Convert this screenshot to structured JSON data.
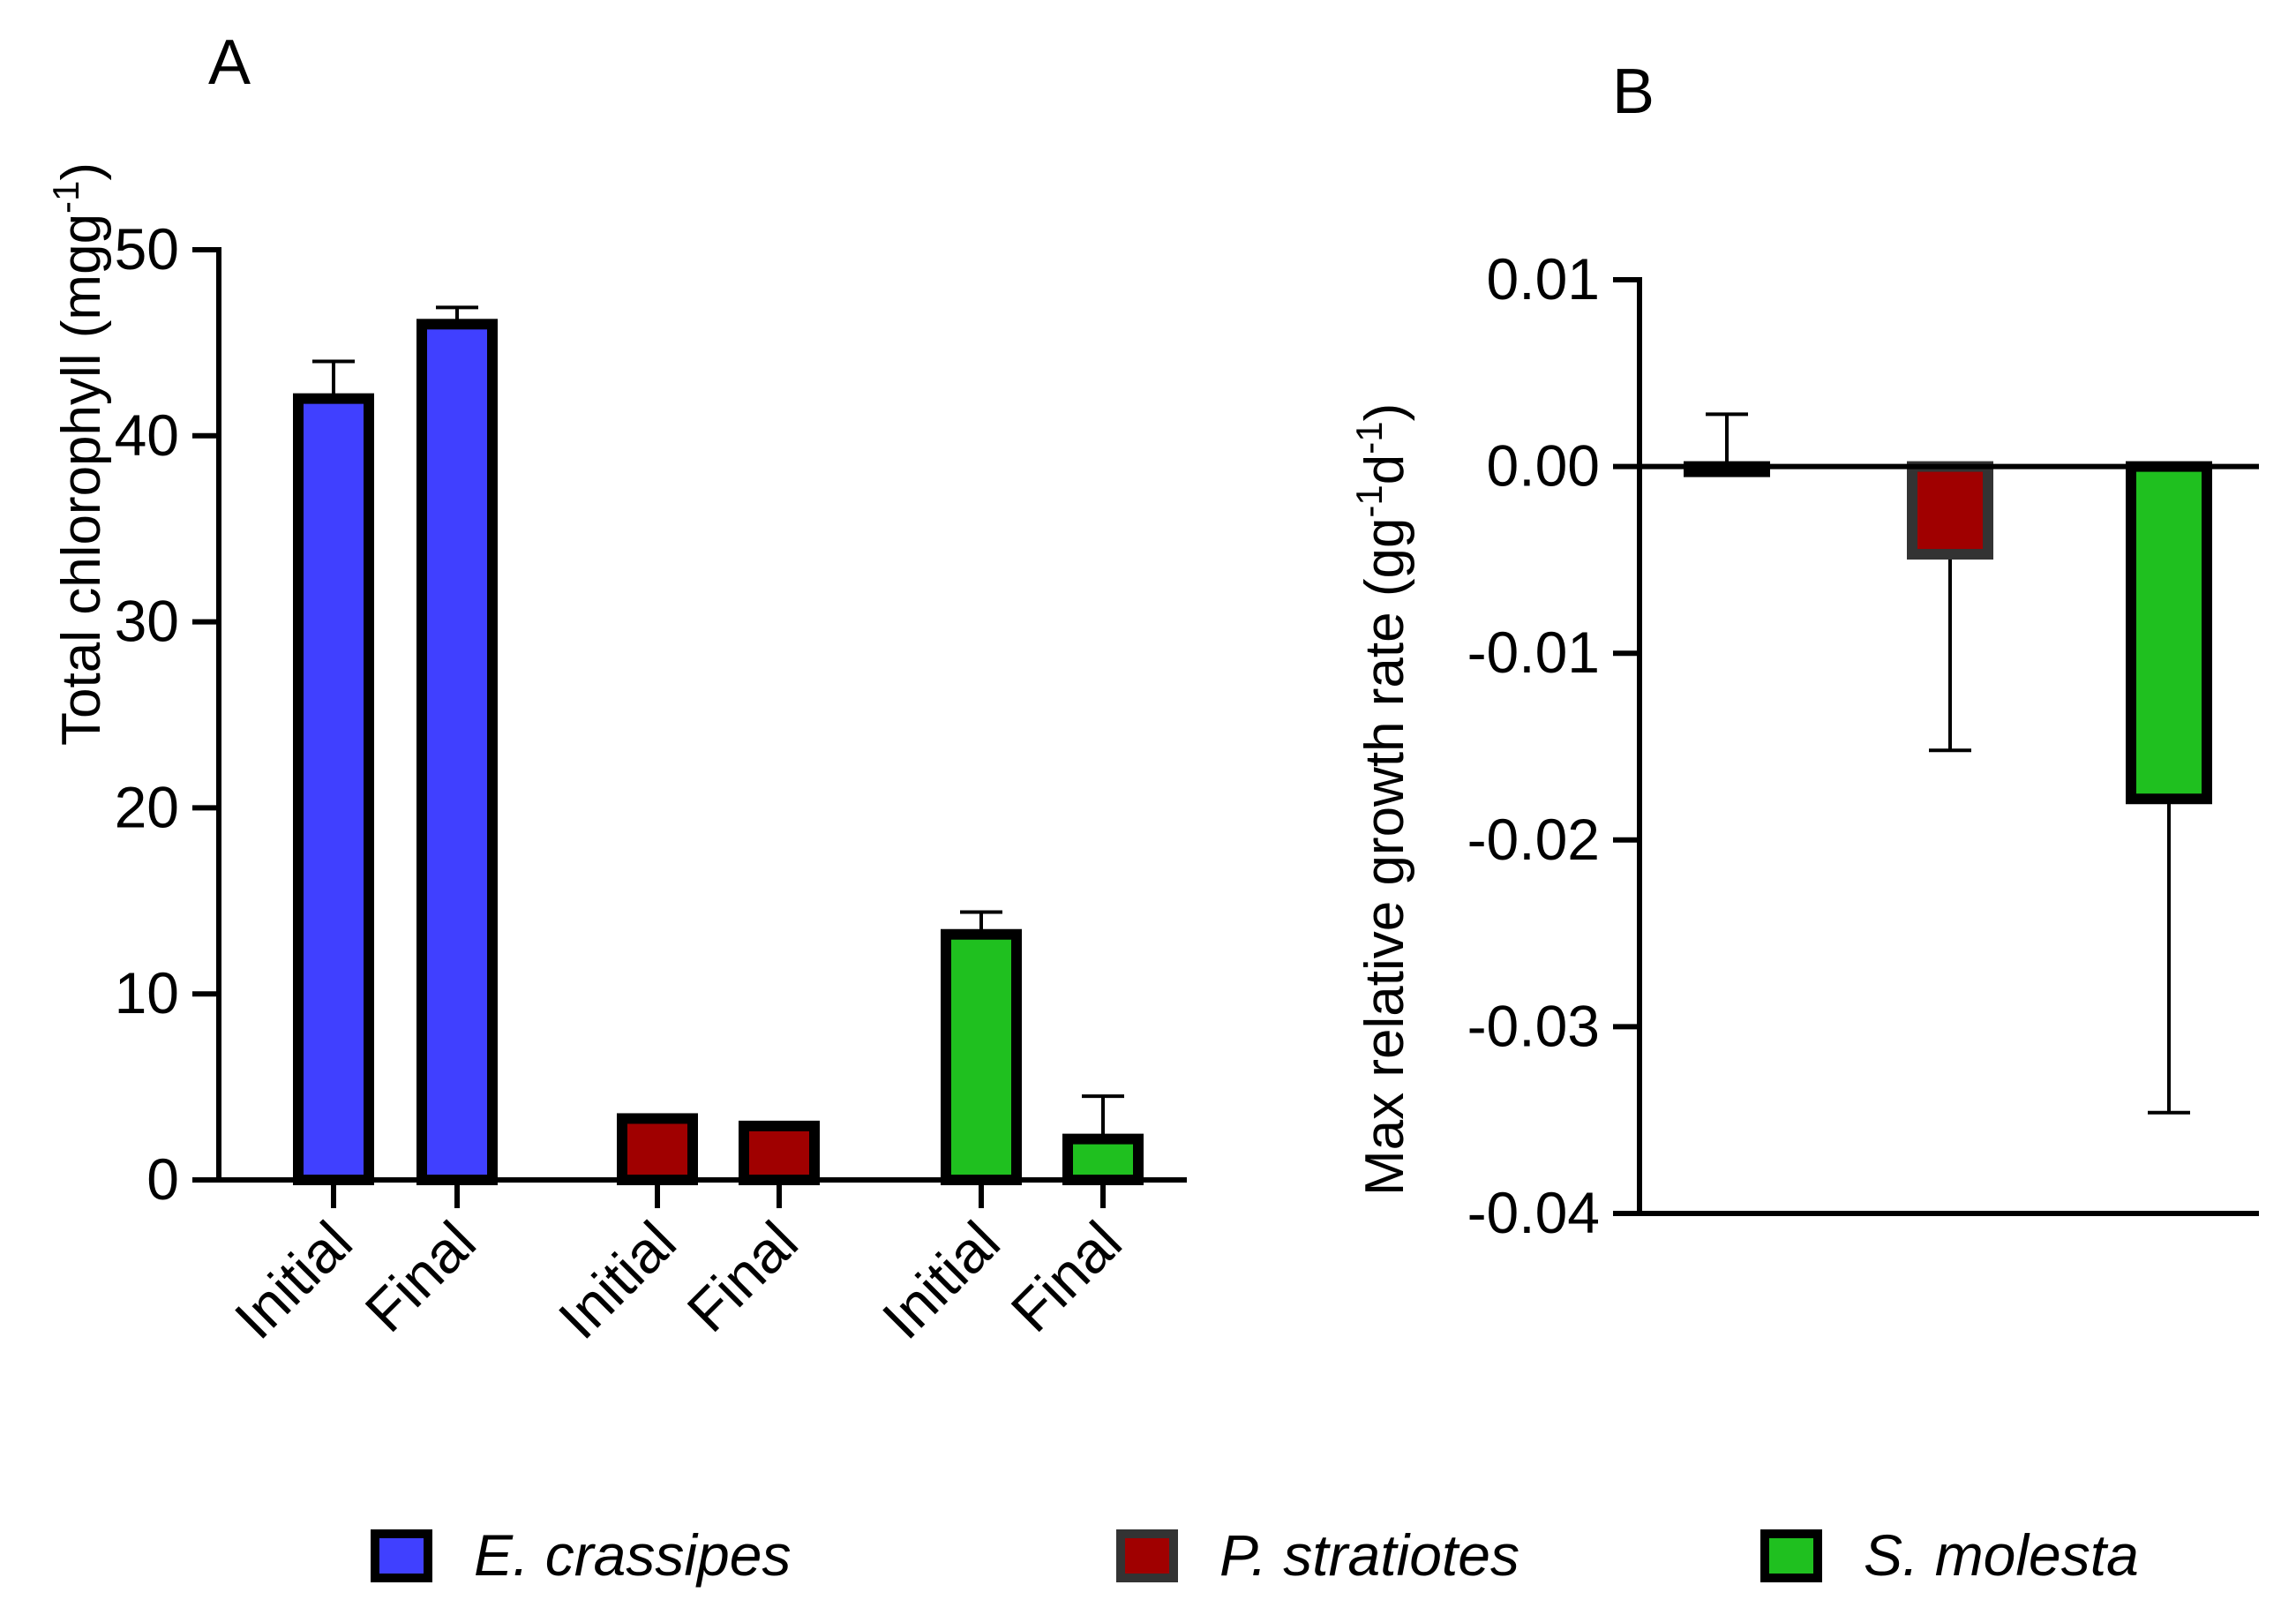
{
  "colors": {
    "E. crassipes": "#4040ff",
    "P. stratiotes": "#a00000",
    "S. molesta": "#1fc01f",
    "outline": "#000000"
  },
  "chart_data": [
    {
      "panel": "A",
      "type": "bar",
      "ylabel_main": "Total chlorophyll (mgg",
      "ylabel_sup": "-1",
      "ylabel_end": ")",
      "ylim": [
        0,
        50
      ],
      "yticks": [
        0,
        10,
        20,
        30,
        40,
        50
      ],
      "categories": [
        "Initial",
        "Final",
        "Initial",
        "Final",
        "Initial",
        "Final"
      ],
      "bars": [
        {
          "label": "Initial",
          "species": "E. crassipes",
          "value": 42,
          "error": 2
        },
        {
          "label": "Final",
          "species": "E. crassipes",
          "value": 46,
          "error": 0.9
        },
        {
          "label": "Initial",
          "species": "P. stratiotes",
          "value": 3.3,
          "error": 0.1
        },
        {
          "label": "Final",
          "species": "P. stratiotes",
          "value": 2.9,
          "error": 0.1
        },
        {
          "label": "Initial",
          "species": "S. molesta",
          "value": 13.2,
          "error": 1.2
        },
        {
          "label": "Final",
          "species": "S. molesta",
          "value": 2.2,
          "error": 2.3
        }
      ]
    },
    {
      "panel": "B",
      "type": "bar",
      "ylabel_parts": [
        "Max relative growth rate (gg",
        "-1",
        "d",
        "-1",
        ")"
      ],
      "ylim": [
        -0.04,
        0.01
      ],
      "yticks": [
        0.01,
        0.0,
        -0.01,
        -0.02,
        -0.03,
        -0.04
      ],
      "ytick_labels": [
        "0.01",
        "0.00",
        "-0.01",
        "-0.02",
        "-0.03",
        "-0.04"
      ],
      "bars": [
        {
          "species": "E. crassipes",
          "value": 0.0,
          "error": 0.0028,
          "error_direction": "up"
        },
        {
          "species": "P. stratiotes",
          "value": -0.0047,
          "error": 0.0105,
          "error_direction": "down"
        },
        {
          "species": "S. molesta",
          "value": -0.0178,
          "error": 0.0168,
          "error_direction": "down"
        }
      ]
    }
  ],
  "legend": [
    {
      "label": "E. crassipes",
      "color": "#4040ff"
    },
    {
      "label": "P. stratiotes",
      "color": "#a00000"
    },
    {
      "label": "S. molesta",
      "color": "#1fc01f"
    }
  ]
}
